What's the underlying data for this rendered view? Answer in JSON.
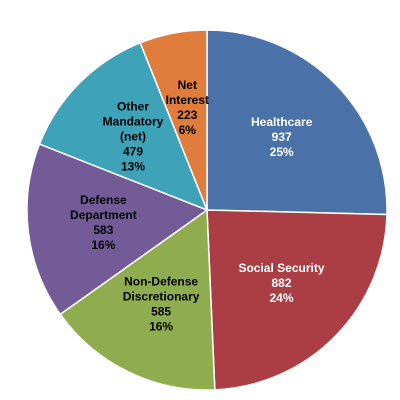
{
  "chart_data": {
    "type": "pie",
    "title": "",
    "unit": "",
    "slices": [
      {
        "label_lines": [
          "Healthcare"
        ],
        "value": "937",
        "percent": "25%",
        "color": "#4a72a8",
        "text_color": "#ffffff"
      },
      {
        "label_lines": [
          "Social Security"
        ],
        "value": "882",
        "percent": "24%",
        "color": "#ab3d44",
        "text_color": "#ffffff"
      },
      {
        "label_lines": [
          "Non-Defense",
          "Discretionary"
        ],
        "value": "585",
        "percent": "16%",
        "color": "#8fad4e",
        "text_color": "#000000"
      },
      {
        "label_lines": [
          "Defense",
          "Department"
        ],
        "value": "583",
        "percent": "16%",
        "color": "#725b96",
        "text_color": "#000000"
      },
      {
        "label_lines": [
          "Other",
          "Mandatory",
          "(net)"
        ],
        "value": "479",
        "percent": "13%",
        "color": "#3ea2b8",
        "text_color": "#000000"
      },
      {
        "label_lines": [
          "Net",
          "Interest"
        ],
        "value": "223",
        "percent": "6%",
        "color": "#e07c3c",
        "text_color": "#000000"
      }
    ]
  }
}
